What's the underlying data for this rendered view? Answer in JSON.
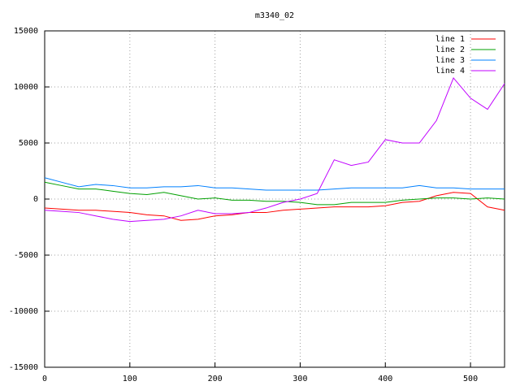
{
  "chart_data": {
    "type": "line",
    "title": "m3340_02",
    "x": [
      0,
      20,
      40,
      60,
      80,
      100,
      120,
      140,
      160,
      180,
      200,
      220,
      240,
      260,
      280,
      300,
      320,
      340,
      360,
      380,
      400,
      420,
      440,
      460,
      480,
      500,
      520,
      540
    ],
    "series": [
      {
        "name": "line 1",
        "color": "#ff0000",
        "values": [
          -800,
          -900,
          -1000,
          -1000,
          -1100,
          -1200,
          -1400,
          -1500,
          -1900,
          -1800,
          -1500,
          -1400,
          -1200,
          -1200,
          -1000,
          -900,
          -800,
          -700,
          -700,
          -700,
          -600,
          -300,
          -200,
          300,
          600,
          500,
          -700,
          -1000
        ]
      },
      {
        "name": "line 2",
        "color": "#00a000",
        "values": [
          1500,
          1200,
          900,
          900,
          700,
          500,
          400,
          600,
          300,
          0,
          100,
          -100,
          -100,
          -200,
          -200,
          -300,
          -500,
          -500,
          -300,
          -300,
          -300,
          -100,
          0,
          100,
          100,
          0,
          100,
          0
        ]
      },
      {
        "name": "line 3",
        "color": "#0080ff",
        "values": [
          1900,
          1500,
          1100,
          1300,
          1200,
          1000,
          1000,
          1100,
          1100,
          1200,
          1000,
          1000,
          900,
          800,
          800,
          800,
          800,
          900,
          1000,
          1000,
          1000,
          1000,
          1200,
          1000,
          1000,
          900,
          900,
          900
        ]
      },
      {
        "name": "line 4",
        "color": "#c000ff",
        "values": [
          -1000,
          -1100,
          -1200,
          -1500,
          -1800,
          -2000,
          -1900,
          -1800,
          -1500,
          -1000,
          -1300,
          -1300,
          -1200,
          -800,
          -300,
          0,
          500,
          3500,
          3000,
          3300,
          5300,
          5000,
          5000,
          7000,
          10800,
          9000,
          8000,
          10300
        ]
      }
    ],
    "xlim": [
      0,
      540
    ],
    "ylim": [
      -15000,
      15000
    ],
    "xticks": [
      0,
      100,
      200,
      300,
      400,
      500
    ],
    "yticks": [
      -15000,
      -10000,
      -5000,
      0,
      5000,
      10000,
      15000
    ],
    "grid": true
  }
}
